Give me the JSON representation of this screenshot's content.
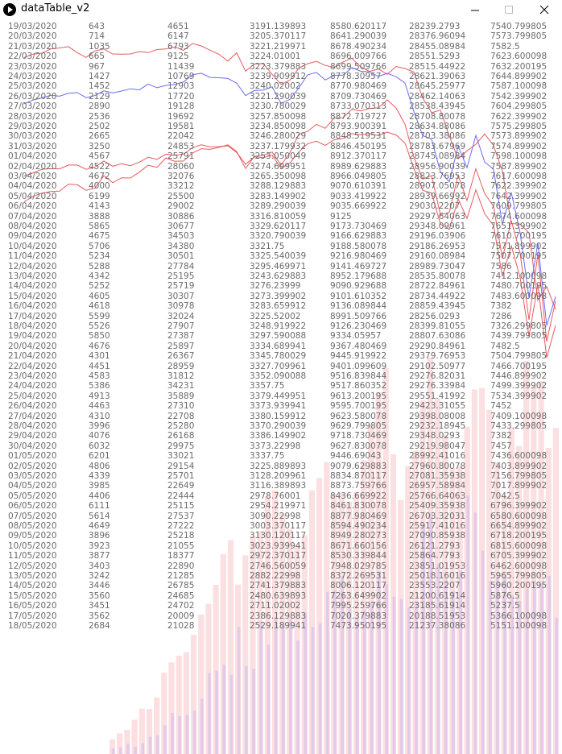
{
  "window": {
    "title": "dataTable_v2"
  },
  "icons": {
    "app": "play-icon",
    "minimize": "minimize-icon",
    "maximize": "maximize-icon",
    "close": "close-icon"
  },
  "colors": {
    "text": "#6a6a6a",
    "line_red": "#e8474c",
    "line_blue": "#5b5bff",
    "bar_pink": "#f9c4c7",
    "bar_purple": "#d0b8f0"
  },
  "table": {
    "rows": [
      [
        "19/03/2020",
        "643",
        "4651",
        "3191.139893",
        "8580.620117",
        "28239.2793",
        "7540.799805"
      ],
      [
        "20/03/2020",
        "714",
        "6147",
        "3205.370117",
        "8641.290039",
        "28376.96094",
        "7573.799805"
      ],
      [
        "21/03/2020",
        "1035",
        "6793",
        "3221.219971",
        "8678.490234",
        "28455.08984",
        "7582.5"
      ],
      [
        "22/03/2020",
        "665",
        "9125",
        "3224.01001",
        "8696.009766",
        "28551.5293",
        "7623.600098"
      ],
      [
        "23/03/2020",
        "967",
        "11439",
        "3223.379883",
        "8699.509766",
        "28515.44922",
        "7632.200195"
      ],
      [
        "24/03/2020",
        "1427",
        "10769",
        "3239.909912",
        "8778.30957",
        "28621.39063",
        "7644.899902"
      ],
      [
        "25/03/2020",
        "1452",
        "12903",
        "3240.02002",
        "8770.980469",
        "28645.25977",
        "7587.100098"
      ],
      [
        "26/03/2020",
        "2129",
        "17720",
        "3221.290039",
        "8709.730469",
        "28462.14063",
        "7542.399902"
      ],
      [
        "27/03/2020",
        "2890",
        "19128",
        "3230.780029",
        "8733.070313",
        "28538.43945",
        "7604.299805"
      ],
      [
        "28/03/2020",
        "2536",
        "19692",
        "3257.850098",
        "8872.719727",
        "28708.80078",
        "7622.399902"
      ],
      [
        "29/03/2020",
        "2502",
        "19581",
        "3234.850098",
        "8793.900391",
        "28634.88086",
        "7575.299805"
      ],
      [
        "30/03/2020",
        "2665",
        "22042",
        "3246.280029",
        "8848.519531",
        "28703.38086",
        "7573.899902"
      ],
      [
        "31/03/2020",
        "3250",
        "24853",
        "3237.179932",
        "8846.450195",
        "28783.67969",
        "7574.899902"
      ],
      [
        "01/04/2020",
        "4567",
        "25791",
        "3253.050049",
        "8912.370117",
        "28745.08984",
        "7598.100098"
      ],
      [
        "02/04/2020",
        "4522",
        "28060",
        "3274.699951",
        "8989.629883",
        "28956.90039",
        "7587.899902"
      ],
      [
        "03/04/2020",
        "4672",
        "32076",
        "3265.350098",
        "8966.049805",
        "28823.76953",
        "7617.600098"
      ],
      [
        "04/04/2020",
        "4000",
        "33212",
        "3288.129883",
        "9070.610391",
        "28907.05078",
        "7622.399902"
      ],
      [
        "05/04/2020",
        "6199",
        "25500",
        "3283.149902",
        "9033.419922",
        "28939.66992",
        "7642.399902"
      ],
      [
        "06/04/2020",
        "4143",
        "29002",
        "3289.290039",
        "9035.669922",
        "29030.2207",
        "7609.799805"
      ],
      [
        "07/04/2020",
        "3888",
        "30886",
        "3316.810059",
        "9125",
        "29297.64063",
        "7674.600098"
      ],
      [
        "08/04/2020",
        "5865",
        "30677",
        "3329.620117",
        "9173.730469",
        "29348.09961",
        "7651.399902"
      ],
      [
        "09/04/2020",
        "4675",
        "34503",
        "3320.790039",
        "9166.629883",
        "29196.03906",
        "7610.700195"
      ],
      [
        "10/04/2020",
        "5706",
        "34380",
        "3321.75",
        "9188.580078",
        "29186.26953",
        "7571.899902"
      ],
      [
        "11/04/2020",
        "5234",
        "30501",
        "3325.540039",
        "9216.980469",
        "29160.08984",
        "7507.700195"
      ],
      [
        "12/04/2020",
        "5288",
        "27784",
        "3295.469971",
        "9141.469727",
        "28989.73047",
        "7586"
      ],
      [
        "13/04/2020",
        "4342",
        "25195",
        "3243.629883",
        "8952.179688",
        "28535.80078",
        "7412.100098"
      ],
      [
        "14/04/2020",
        "5252",
        "25719",
        "3276.23999",
        "9090.929688",
        "28722.84961",
        "7480.700195"
      ],
      [
        "15/04/2020",
        "4605",
        "30307",
        "3273.399902",
        "9101.610352",
        "28734.44922",
        "7483.600098"
      ],
      [
        "16/04/2020",
        "4618",
        "30978",
        "3283.659912",
        "9136.089844",
        "28859.43945",
        "7382"
      ],
      [
        "17/04/2020",
        "5599",
        "32024",
        "3225.52002",
        "8991.509766",
        "28256.0293",
        "7286"
      ],
      [
        "18/04/2020",
        "5526",
        "27907",
        "3248.919922",
        "9126.230469",
        "28399.81055",
        "7326.299805"
      ],
      [
        "19/04/2020",
        "5850",
        "27387",
        "3297.590088",
        "9334.05957",
        "28807.63086",
        "7439.799805"
      ],
      [
        "20/04/2020",
        "4676",
        "25897",
        "3334.689941",
        "9367.480469",
        "29290.84961",
        "7482.5"
      ],
      [
        "21/04/2020",
        "4301",
        "26367",
        "3345.780029",
        "9445.919922",
        "29379.76953",
        "7504.799805"
      ],
      [
        "22/04/2020",
        "4451",
        "28959",
        "3327.709961",
        "9401.099609",
        "29102.50977",
        "7466.700195"
      ],
      [
        "23/04/2020",
        "4583",
        "31812",
        "3352.090088",
        "9516.839844",
        "29276.82031",
        "7446.899902"
      ],
      [
        "24/04/2020",
        "5386",
        "34231",
        "3357.75",
        "9517.860352",
        "29276.33984",
        "7499.399902"
      ],
      [
        "25/04/2020",
        "4913",
        "35889",
        "3379.449951",
        "9613.200195",
        "29551.41992",
        "7534.399902"
      ],
      [
        "26/04/2020",
        "4463",
        "27310",
        "3373.939941",
        "9595.700195",
        "29423.31055",
        "7452"
      ],
      [
        "27/04/2020",
        "4310",
        "22708",
        "3380.159912",
        "9623.580078",
        "29398.08008",
        "7409.100098"
      ],
      [
        "28/04/2020",
        "3996",
        "25280",
        "3370.290039",
        "9629.799805",
        "29232.18945",
        "7433.299805"
      ],
      [
        "29/04/2020",
        "4076",
        "26168",
        "3386.149902",
        "9718.730469",
        "29348.0293",
        "7382"
      ],
      [
        "30/04/2020",
        "6032",
        "29975",
        "3373.22998",
        "9627.830078",
        "29219.98047",
        "7457"
      ],
      [
        "01/05/2020",
        "6201",
        "33021",
        "3337.75",
        "9446.69043",
        "28992.41016",
        "7436.600098"
      ],
      [
        "02/05/2020",
        "4806",
        "29154",
        "3225.889893",
        "9079.629883",
        "27960.80078",
        "7403.899902"
      ],
      [
        "03/05/2020",
        "4339",
        "25701",
        "3128.209961",
        "8834.870117",
        "27081.35938",
        "7156.799805"
      ],
      [
        "04/05/2020",
        "3985",
        "22649",
        "3116.389893",
        "8873.759766",
        "26957.58984",
        "7017.899902"
      ],
      [
        "05/05/2020",
        "4406",
        "22444",
        "2978.76001",
        "8436.669922",
        "25766.64063",
        "7042.5"
      ],
      [
        "06/05/2020",
        "6111",
        "25115",
        "2954.219971",
        "8461.830078",
        "25409.35938",
        "6796.399902"
      ],
      [
        "07/05/2020",
        "5614",
        "27537",
        "3090.22998",
        "8877.980469",
        "26703.32031",
        "6580.600098"
      ],
      [
        "08/05/2020",
        "4649",
        "27222",
        "3003.370117",
        "8594.490234",
        "25917.41016",
        "6654.899902"
      ],
      [
        "09/05/2020",
        "3896",
        "25218",
        "3130.120117",
        "8949.280273",
        "27090.85938",
        "6718.200195"
      ],
      [
        "10/05/2020",
        "3923",
        "21055",
        "3023.939941",
        "8671.660156",
        "26121.2793",
        "6815.600098"
      ],
      [
        "11/05/2020",
        "3877",
        "18377",
        "2972.370117",
        "8530.339844",
        "25864.7793",
        "6705.399902"
      ],
      [
        "12/05/2020",
        "3403",
        "22890",
        "2746.560059",
        "7948.029785",
        "23851.01953",
        "6462.600098"
      ],
      [
        "13/05/2020",
        "3242",
        "21285",
        "2882.22998",
        "8372.269531",
        "25018.16016",
        "5965.799805"
      ],
      [
        "14/05/2020",
        "3446",
        "26785",
        "2741.379883",
        "8006.120117",
        "23553.2207",
        "5960.200195"
      ],
      [
        "15/05/2020",
        "3560",
        "24685",
        "2480.639893",
        "7263.649902",
        "21200.61914",
        "5876.5"
      ],
      [
        "16/05/2020",
        "3451",
        "24702",
        "2711.02002",
        "7995.259766",
        "23185.61914",
        "5237.5"
      ],
      [
        "17/05/2020",
        "3562",
        "20009",
        "2386.129883",
        "7020.379883",
        "20188.51953",
        "5366.100098"
      ],
      [
        "18/05/2020",
        "2684",
        "21028",
        "2529.189941",
        "7473.950195",
        "21237.38086",
        "5151.100098"
      ]
    ]
  }
}
